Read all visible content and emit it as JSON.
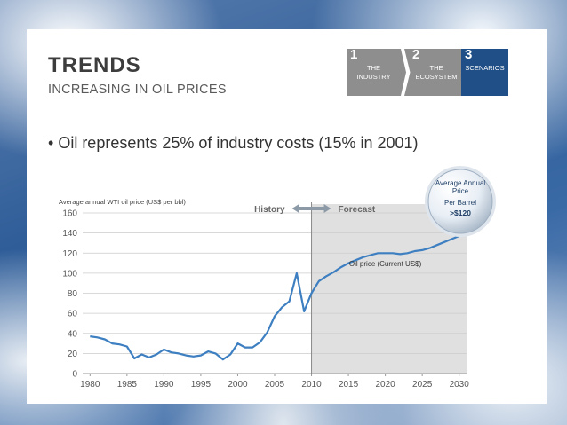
{
  "slide": {
    "title": "TRENDS",
    "subtitle": "INCREASING IN OIL PRICES",
    "bullet": "Oil represents 25% of industry costs (15% in 2001)"
  },
  "steps": [
    {
      "num": "1",
      "label_line1": "THE",
      "label_line2": "INDUSTRY",
      "active": false
    },
    {
      "num": "2",
      "label_line1": "THE",
      "label_line2": "ECOSYSTEM",
      "active": false
    },
    {
      "num": "3",
      "label_line1": "SCENARIOS",
      "label_line2": "",
      "active": true
    }
  ],
  "colors": {
    "accent": "#1f4f86",
    "inactive_step": "#8e8e8e",
    "line": "#3d7fc1",
    "forecast_shade": "#e0e0e0",
    "grid": "#cccccc"
  },
  "callout": {
    "line1": "Average Annual",
    "line2": "Price",
    "line3": "Per Barrel",
    "value": ">$120"
  },
  "chart_data": {
    "type": "line",
    "title": "",
    "ylabel": "Average annual WTI oil price (US$ per bbl)",
    "xlabel": "",
    "xlim": [
      1979,
      2031
    ],
    "ylim": [
      0,
      160
    ],
    "x_ticks": [
      1980,
      1985,
      1990,
      1995,
      2000,
      2005,
      2010,
      2015,
      2020,
      2025,
      2030
    ],
    "y_ticks": [
      0,
      20,
      40,
      60,
      80,
      100,
      120,
      140,
      160
    ],
    "grid": "horizontal",
    "regions": {
      "history_label": "History",
      "forecast_label": "Forecast",
      "forecast_start": 2010,
      "forecast_end": 2030
    },
    "series": [
      {
        "name": "Oil price (Current US$)",
        "x": [
          1980,
          1981,
          1982,
          1983,
          1984,
          1985,
          1986,
          1987,
          1988,
          1989,
          1990,
          1991,
          1992,
          1993,
          1994,
          1995,
          1996,
          1997,
          1998,
          1999,
          2000,
          2001,
          2002,
          2003,
          2004,
          2005,
          2006,
          2007,
          2008,
          2009,
          2010,
          2011,
          2012,
          2013,
          2014,
          2015,
          2016,
          2017,
          2018,
          2019,
          2020,
          2021,
          2022,
          2023,
          2024,
          2025,
          2026,
          2027,
          2028,
          2029,
          2030
        ],
        "values": [
          37,
          36,
          34,
          30,
          29,
          27,
          15,
          19,
          16,
          19,
          24,
          21,
          20,
          18,
          17,
          18,
          22,
          20,
          14,
          19,
          30,
          26,
          26,
          31,
          41,
          57,
          66,
          72,
          100,
          62,
          80,
          92,
          97,
          101,
          106,
          110,
          113,
          116,
          118,
          120,
          120,
          120,
          119,
          120,
          122,
          123,
          125,
          128,
          131,
          134,
          137
        ]
      }
    ]
  }
}
